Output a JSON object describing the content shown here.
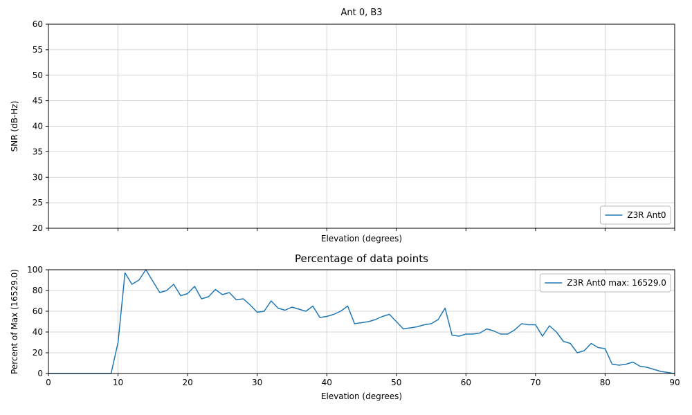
{
  "figure": {
    "background": "#ffffff",
    "line_color": "#1f77b4",
    "grid_color": "#c9c9c9",
    "spine_color": "#000000"
  },
  "chart_data": [
    {
      "type": "line",
      "title": "Ant 0, B3",
      "xlabel": "Elevation (degrees)",
      "ylabel": "SNR (dB-Hz)",
      "xlim": [
        0,
        90
      ],
      "ylim": [
        20,
        60
      ],
      "xticks": [
        0,
        10,
        20,
        30,
        40,
        50,
        60,
        70,
        80,
        90
      ],
      "xtick_labels_visible": false,
      "yticks": [
        20,
        25,
        30,
        35,
        40,
        45,
        50,
        55,
        60
      ],
      "grid": true,
      "legend": {
        "label": "Z3R Ant0",
        "position": "lower right"
      },
      "series": [
        {
          "name": "Z3R Ant0",
          "x": [],
          "values": [],
          "note": "no data visible within axis range"
        }
      ]
    },
    {
      "type": "line",
      "title": "Percentage of data points",
      "xlabel": "Elevation (degrees)",
      "ylabel": "Percent of Max (16529.0)",
      "max_value": 16529.0,
      "xlim": [
        0,
        90
      ],
      "ylim": [
        0,
        100
      ],
      "xticks": [
        0,
        10,
        20,
        30,
        40,
        50,
        60,
        70,
        80,
        90
      ],
      "xtick_labels_visible": true,
      "yticks": [
        0,
        20,
        40,
        60,
        80,
        100
      ],
      "grid": true,
      "legend": {
        "label": "Z3R Ant0 max: 16529.0",
        "position": "upper right"
      },
      "series": [
        {
          "name": "Z3R Ant0",
          "x": [
            0,
            1,
            2,
            3,
            4,
            5,
            6,
            7,
            8,
            9,
            10,
            11,
            12,
            13,
            14,
            15,
            16,
            17,
            18,
            19,
            20,
            21,
            22,
            23,
            24,
            25,
            26,
            27,
            28,
            29,
            30,
            31,
            32,
            33,
            34,
            35,
            36,
            37,
            38,
            39,
            40,
            41,
            42,
            43,
            44,
            45,
            46,
            47,
            48,
            49,
            50,
            51,
            52,
            53,
            54,
            55,
            56,
            57,
            58,
            59,
            60,
            61,
            62,
            63,
            64,
            65,
            66,
            67,
            68,
            69,
            70,
            71,
            72,
            73,
            74,
            75,
            76,
            77,
            78,
            79,
            80,
            81,
            82,
            83,
            84,
            85,
            86,
            87,
            88,
            89,
            90
          ],
          "values": [
            0,
            0,
            0,
            0,
            0,
            0,
            0,
            0,
            0,
            0,
            30,
            97,
            86,
            90,
            100,
            89,
            78,
            80,
            86,
            75,
            77,
            84,
            72,
            74,
            81,
            76,
            78,
            71,
            72,
            66,
            59,
            60,
            70,
            63,
            61,
            64,
            62,
            60,
            65,
            54,
            55,
            57,
            60,
            65,
            48,
            49,
            50,
            52,
            55,
            57,
            50,
            43,
            44,
            45,
            47,
            48,
            52,
            63,
            37,
            36,
            38,
            38,
            39,
            43,
            41,
            38,
            38,
            42,
            48,
            47,
            47,
            36,
            46,
            40,
            31,
            29,
            20,
            22,
            29,
            25,
            24,
            9,
            8,
            9,
            11,
            7,
            6,
            4,
            2,
            1,
            0
          ]
        }
      ]
    }
  ]
}
